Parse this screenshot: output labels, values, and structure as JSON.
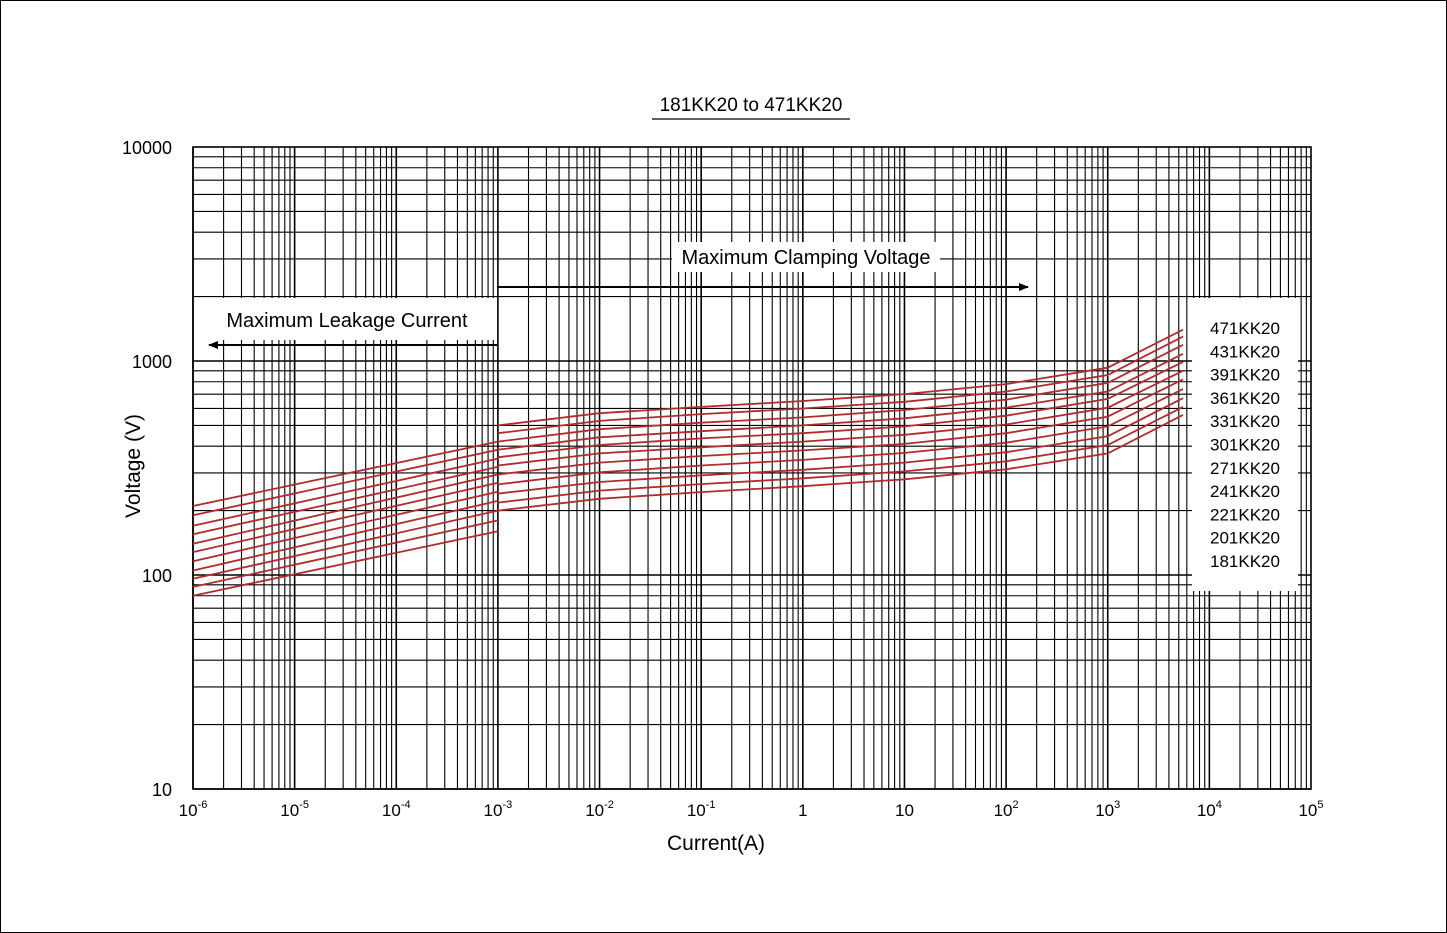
{
  "chart_data": {
    "type": "line",
    "title": "181KK20 to 471KK20",
    "xlabel": "Current(A)",
    "ylabel": "Voltage (V)",
    "x_scale": "log",
    "y_scale": "log",
    "xlim": [
      1e-06,
      100000
    ],
    "ylim": [
      10,
      10000
    ],
    "grid": true,
    "x_ticks": [
      {
        "base": "10",
        "exp": "-6"
      },
      {
        "base": "10",
        "exp": "-5"
      },
      {
        "base": "10",
        "exp": "-4"
      },
      {
        "base": "10",
        "exp": "-3"
      },
      {
        "base": "10",
        "exp": "-2"
      },
      {
        "base": "10",
        "exp": "-1"
      },
      {
        "base": "1",
        "exp": ""
      },
      {
        "base": "10",
        "exp": ""
      },
      {
        "base": "10",
        "exp": "2"
      },
      {
        "base": "10",
        "exp": "3"
      },
      {
        "base": "10",
        "exp": "4"
      },
      {
        "base": "10",
        "exp": "5"
      }
    ],
    "y_ticks": [
      "10",
      "100",
      "1000",
      "10000"
    ],
    "annotations": {
      "leakage": "Maximum Leakage Current",
      "clamping": "Maximum Clamping Voltage"
    },
    "legend_position": "right",
    "series_color": "#b52a2a",
    "series": [
      {
        "name": "471KK20",
        "leakage": {
          "x": [
            1e-06,
            0.001
          ],
          "y": [
            210,
            420
          ]
        },
        "clamping": {
          "x": [
            0.001,
            0.01,
            0.1,
            1,
            10,
            100,
            1000,
            5500
          ],
          "y": [
            500,
            570,
            610,
            650,
            700,
            780,
            930,
            1400
          ]
        }
      },
      {
        "name": "431KK20",
        "leakage": {
          "x": [
            1e-06,
            0.001
          ],
          "y": [
            190,
            385
          ]
        },
        "clamping": {
          "x": [
            0.001,
            0.01,
            0.1,
            1,
            10,
            100,
            1000,
            5500
          ],
          "y": [
            460,
            525,
            565,
            600,
            645,
            720,
            860,
            1300
          ]
        }
      },
      {
        "name": "391KK20",
        "leakage": {
          "x": [
            1e-06,
            0.001
          ],
          "y": [
            170,
            350
          ]
        },
        "clamping": {
          "x": [
            0.001,
            0.01,
            0.1,
            1,
            10,
            100,
            1000,
            5500
          ],
          "y": [
            420,
            480,
            515,
            545,
            590,
            660,
            790,
            1190
          ]
        }
      },
      {
        "name": "361KK20",
        "leakage": {
          "x": [
            1e-06,
            0.001
          ],
          "y": [
            155,
            320
          ]
        },
        "clamping": {
          "x": [
            0.001,
            0.01,
            0.1,
            1,
            10,
            100,
            1000,
            5500
          ],
          "y": [
            385,
            440,
            470,
            500,
            540,
            605,
            720,
            1080
          ]
        }
      },
      {
        "name": "331KK20",
        "leakage": {
          "x": [
            1e-06,
            0.001
          ],
          "y": [
            140,
            295
          ]
        },
        "clamping": {
          "x": [
            0.001,
            0.01,
            0.1,
            1,
            10,
            100,
            1000,
            5500
          ],
          "y": [
            355,
            405,
            435,
            460,
            495,
            555,
            665,
            990
          ]
        }
      },
      {
        "name": "301KK20",
        "leakage": {
          "x": [
            1e-06,
            0.001
          ],
          "y": [
            128,
            270
          ]
        },
        "clamping": {
          "x": [
            0.001,
            0.01,
            0.1,
            1,
            10,
            100,
            1000,
            5500
          ],
          "y": [
            325,
            370,
            395,
            420,
            452,
            505,
            605,
            900
          ]
        }
      },
      {
        "name": "271KK20",
        "leakage": {
          "x": [
            1e-06,
            0.001
          ],
          "y": [
            116,
            245
          ]
        },
        "clamping": {
          "x": [
            0.001,
            0.01,
            0.1,
            1,
            10,
            100,
            1000,
            5500
          ],
          "y": [
            295,
            335,
            360,
            382,
            410,
            460,
            550,
            820
          ]
        }
      },
      {
        "name": "241KK20",
        "leakage": {
          "x": [
            1e-06,
            0.001
          ],
          "y": [
            105,
            222
          ]
        },
        "clamping": {
          "x": [
            0.001,
            0.01,
            0.1,
            1,
            10,
            100,
            1000,
            5500
          ],
          "y": [
            265,
            302,
            325,
            345,
            372,
            415,
            495,
            740
          ]
        }
      },
      {
        "name": "221KK20",
        "leakage": {
          "x": [
            1e-06,
            0.001
          ],
          "y": [
            96,
            200
          ]
        },
        "clamping": {
          "x": [
            0.001,
            0.01,
            0.1,
            1,
            10,
            100,
            1000,
            5500
          ],
          "y": [
            240,
            272,
            292,
            310,
            335,
            375,
            445,
            670
          ]
        }
      },
      {
        "name": "201KK20",
        "leakage": {
          "x": [
            1e-06,
            0.001
          ],
          "y": [
            88,
            180
          ]
        },
        "clamping": {
          "x": [
            0.001,
            0.01,
            0.1,
            1,
            10,
            100,
            1000,
            5500
          ],
          "y": [
            218,
            248,
            266,
            283,
            305,
            340,
            405,
            610
          ]
        }
      },
      {
        "name": "181KK20",
        "leakage": {
          "x": [
            1e-06,
            0.001
          ],
          "y": [
            80,
            160
          ]
        },
        "clamping": {
          "x": [
            0.001,
            0.01,
            0.1,
            1,
            10,
            100,
            1000,
            5500
          ],
          "y": [
            200,
            227,
            244,
            260,
            280,
            312,
            370,
            560
          ]
        }
      }
    ]
  }
}
